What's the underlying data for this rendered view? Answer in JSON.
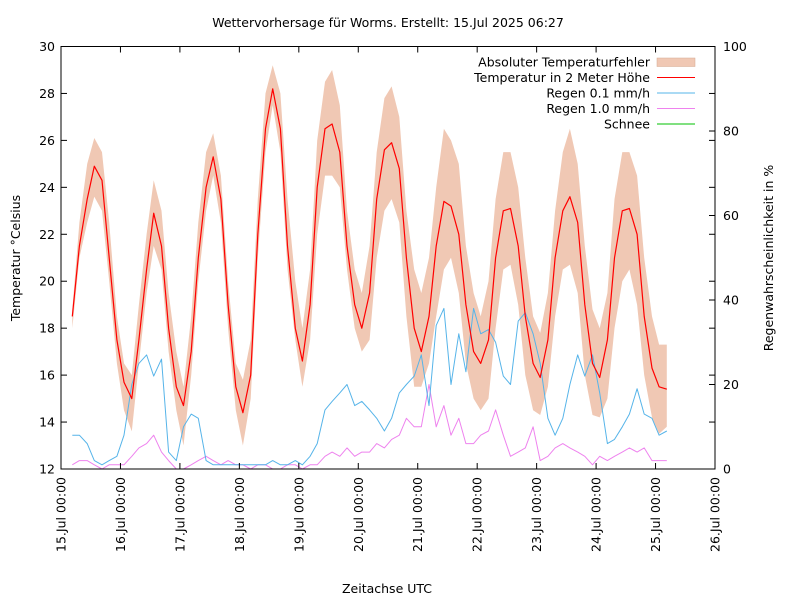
{
  "chart_data": {
    "type": "line",
    "title": "Wettervorhersage für Worms. Erstellt: 15.Jul 2025 06:27",
    "xlabel": "Zeitachse UTC",
    "ylabel": "Temperatur °Celsius",
    "y2label": "Regenwahrscheinlichkeit in %",
    "xlim_days": [
      0,
      11
    ],
    "ylim": [
      12,
      30
    ],
    "y2lim": [
      0,
      100
    ],
    "grid": false,
    "legend_position": "top-right",
    "x_tick_labels": [
      "15.Jul 00:00",
      "16.Jul 00:00",
      "17.Jul 00:00",
      "18.Jul 00:00",
      "19.Jul 00:00",
      "20.Jul 00:00",
      "21.Jul 00:00",
      "22.Jul 00:00",
      "23.Jul 00:00",
      "24.Jul 00:00",
      "25.Jul 00:00",
      "26.Jul 00:00"
    ],
    "y_tick_labels": [
      "12",
      "14",
      "16",
      "18",
      "20",
      "22",
      "24",
      "26",
      "28",
      "30"
    ],
    "y2_tick_labels": [
      "0",
      "20",
      "40",
      "60",
      "80",
      "100"
    ],
    "x_unit": "days since 15.Jul 00:00 UTC",
    "x": [
      0.19,
      0.31,
      0.44,
      0.56,
      0.69,
      0.81,
      0.94,
      1.06,
      1.19,
      1.31,
      1.44,
      1.56,
      1.69,
      1.81,
      1.94,
      2.06,
      2.19,
      2.31,
      2.44,
      2.56,
      2.69,
      2.81,
      2.94,
      3.06,
      3.19,
      3.31,
      3.44,
      3.56,
      3.69,
      3.81,
      3.94,
      4.06,
      4.19,
      4.31,
      4.44,
      4.56,
      4.69,
      4.81,
      4.94,
      5.06,
      5.19,
      5.31,
      5.44,
      5.56,
      5.69,
      5.81,
      5.94,
      6.06,
      6.19,
      6.31,
      6.44,
      6.56,
      6.69,
      6.81,
      6.94,
      7.06,
      7.19,
      7.31,
      7.44,
      7.56,
      7.69,
      7.81,
      7.94,
      8.06,
      8.19,
      8.31,
      8.44,
      8.56,
      8.69,
      8.81,
      8.94,
      9.06,
      9.19,
      9.31,
      9.44,
      9.56,
      9.69,
      9.81,
      9.94,
      10.06,
      10.19
    ],
    "series": [
      {
        "name": "Temperatur in 2 Meter Höhe",
        "color": "#ff0000",
        "axis": "y",
        "values": [
          18.5,
          21.5,
          23.5,
          24.9,
          24.3,
          21.0,
          17.5,
          15.7,
          15.0,
          17.5,
          20.5,
          22.9,
          21.5,
          18.0,
          15.5,
          14.7,
          17.0,
          21.0,
          24.0,
          25.3,
          23.5,
          19.0,
          15.5,
          14.4,
          16.0,
          22.0,
          26.5,
          28.2,
          26.5,
          21.5,
          18.0,
          16.6,
          19.0,
          24.0,
          26.5,
          26.7,
          25.5,
          21.5,
          19.0,
          18.0,
          19.5,
          23.5,
          25.6,
          25.9,
          24.8,
          21.0,
          18.0,
          17.0,
          18.5,
          21.5,
          23.4,
          23.2,
          22.0,
          19.0,
          17.0,
          16.5,
          17.5,
          21.0,
          23.0,
          23.1,
          21.5,
          18.5,
          16.5,
          15.9,
          17.5,
          21.0,
          23.0,
          23.6,
          22.5,
          19.0,
          16.5,
          15.9,
          17.5,
          21.0,
          23.0,
          23.1,
          22.0,
          18.5,
          16.3,
          15.5,
          15.4
        ]
      },
      {
        "name": "Absoluter Temperaturfehler",
        "color": "#f0c8b4",
        "axis": "y",
        "lower": [
          18.0,
          21.0,
          22.5,
          23.6,
          23.0,
          20.0,
          16.5,
          14.5,
          13.6,
          16.5,
          19.5,
          21.5,
          20.5,
          17.0,
          14.5,
          13.0,
          16.0,
          20.0,
          23.0,
          24.5,
          22.5,
          18.0,
          14.5,
          13.0,
          15.0,
          21.0,
          25.5,
          27.5,
          25.5,
          20.5,
          17.5,
          15.5,
          17.5,
          22.0,
          24.5,
          24.5,
          24.0,
          20.5,
          18.0,
          17.0,
          17.5,
          21.0,
          23.0,
          23.5,
          22.5,
          18.5,
          15.5,
          15.5,
          16.5,
          18.5,
          20.5,
          21.0,
          19.5,
          16.5,
          15.0,
          14.5,
          15.0,
          18.0,
          20.5,
          20.7,
          19.0,
          16.0,
          14.5,
          14.3,
          15.5,
          18.5,
          20.5,
          20.7,
          19.5,
          16.0,
          14.3,
          14.2,
          15.0,
          18.0,
          20.0,
          20.5,
          19.0,
          16.0,
          14.2,
          13.5,
          13.8
        ],
        "upper": [
          18.8,
          22.5,
          25.0,
          26.1,
          25.5,
          22.5,
          18.5,
          16.5,
          16.0,
          19.0,
          22.0,
          24.3,
          23.0,
          19.5,
          17.0,
          15.5,
          18.5,
          22.5,
          25.5,
          26.3,
          24.5,
          20.0,
          16.5,
          15.8,
          17.5,
          23.5,
          28.0,
          29.2,
          28.0,
          23.5,
          20.0,
          18.0,
          20.5,
          26.0,
          28.5,
          29.0,
          27.5,
          23.0,
          20.5,
          19.5,
          21.5,
          25.5,
          27.8,
          28.3,
          27.0,
          23.0,
          20.5,
          19.5,
          21.0,
          24.0,
          26.5,
          26.0,
          25.0,
          21.5,
          19.5,
          18.5,
          20.0,
          23.5,
          25.5,
          25.5,
          24.0,
          21.0,
          18.5,
          17.8,
          19.5,
          23.0,
          25.5,
          26.5,
          25.0,
          21.5,
          18.8,
          18.0,
          19.5,
          23.5,
          25.5,
          25.5,
          24.5,
          21.0,
          18.5,
          17.3,
          17.3
        ]
      },
      {
        "name": "Regen 0.1 mm/h",
        "color": "#56b4e9",
        "axis": "y2",
        "values": [
          8,
          8,
          6,
          2,
          1,
          2,
          3,
          8,
          20,
          25,
          27,
          22,
          26,
          4,
          2,
          10,
          13,
          12,
          2,
          1,
          1,
          1,
          1,
          1,
          1,
          1,
          1,
          2,
          1,
          1,
          2,
          1,
          3,
          6,
          14,
          16,
          18,
          20,
          15,
          16,
          14,
          12,
          9,
          12,
          18,
          20,
          22,
          27,
          15,
          34,
          38,
          20,
          32,
          23,
          38,
          32,
          33,
          30,
          22,
          20,
          35,
          37,
          32,
          25,
          12,
          8,
          12,
          20,
          27,
          22,
          27,
          18,
          6,
          7,
          10,
          13,
          19,
          13,
          12,
          8,
          9
        ]
      },
      {
        "name": "Regen 1.0 mm/h",
        "color": "#ee82ee",
        "axis": "y2",
        "values": [
          1,
          2,
          2,
          1,
          0,
          1,
          1,
          1,
          3,
          5,
          6,
          8,
          4,
          2,
          0,
          0,
          1,
          2,
          3,
          2,
          1,
          2,
          1,
          1,
          0,
          1,
          1,
          0,
          0,
          1,
          1,
          0,
          1,
          1,
          3,
          4,
          3,
          5,
          3,
          4,
          4,
          6,
          5,
          7,
          8,
          12,
          10,
          10,
          20,
          10,
          15,
          8,
          12,
          6,
          6,
          8,
          9,
          14,
          8,
          3,
          4,
          5,
          10,
          2,
          3,
          5,
          6,
          5,
          4,
          3,
          1,
          3,
          2,
          3,
          4,
          5,
          4,
          5,
          2,
          2,
          2
        ]
      },
      {
        "name": "Schnee",
        "color": "#00c000",
        "axis": "y2",
        "values": []
      }
    ]
  }
}
